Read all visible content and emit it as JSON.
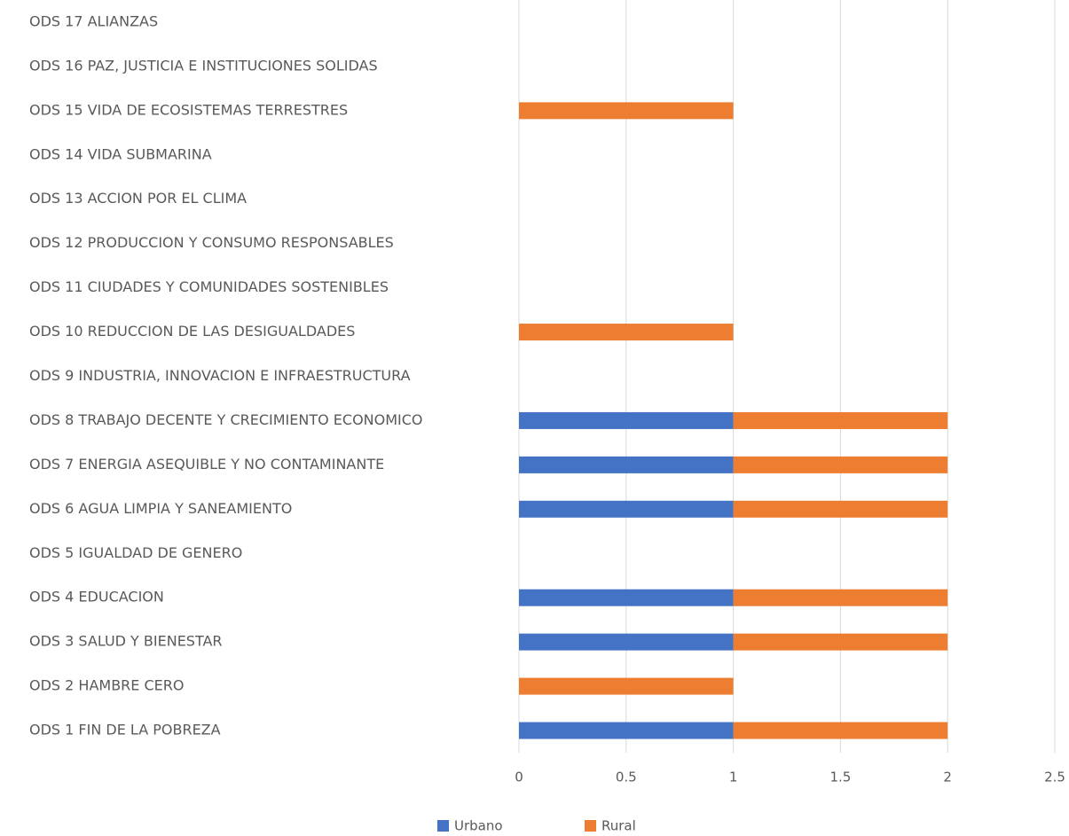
{
  "chart_data": {
    "type": "stacked-bar-horizontal",
    "categories": [
      "ODS 1 FIN DE LA POBREZA",
      "ODS 2 HAMBRE CERO",
      "ODS 3 SALUD Y BIENESTAR",
      "ODS 4 EDUCACION",
      "ODS 5 IGUALDAD DE GENERO",
      "ODS 6 AGUA LIMPIA Y SANEAMIENTO",
      "ODS 7 ENERGIA ASEQUIBLE Y NO CONTAMINANTE",
      "ODS 8 TRABAJO DECENTE Y CRECIMIENTO ECONOMICO",
      "ODS 9 INDUSTRIA, INNOVACION E INFRAESTRUCTURA",
      "ODS 10 REDUCCION DE LAS DESIGUALDADES",
      "ODS 11 CIUDADES Y COMUNIDADES SOSTENIBLES",
      "ODS 12 PRODUCCION Y CONSUMO RESPONSABLES",
      "ODS 13 ACCION POR EL CLIMA",
      "ODS 14 VIDA SUBMARINA",
      "ODS 15 VIDA DE ECOSISTEMAS TERRESTRES",
      "ODS 16 PAZ, JUSTICIA E INSTITUCIONES SOLIDAS",
      "ODS 17 ALIANZAS"
    ],
    "series": [
      {
        "name": "Urbano",
        "color": "#4472c4",
        "values": [
          1,
          0,
          1,
          1,
          0,
          1,
          1,
          1,
          0,
          0,
          0,
          0,
          0,
          0,
          0,
          0,
          0
        ]
      },
      {
        "name": "Rural",
        "color": "#ed7d31",
        "values": [
          1,
          1,
          1,
          1,
          0,
          1,
          1,
          1,
          0,
          1,
          0,
          0,
          0,
          0,
          1,
          0,
          0
        ]
      }
    ],
    "xlim": [
      0,
      2.5
    ],
    "xticks": [
      0,
      0.5,
      1,
      1.5,
      2,
      2.5
    ],
    "grid": true,
    "legend": "bottom"
  }
}
